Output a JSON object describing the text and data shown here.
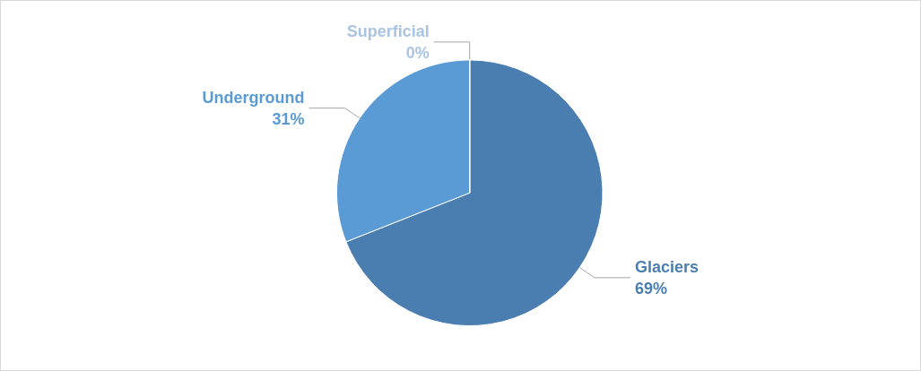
{
  "chart_data": {
    "type": "pie",
    "categories": [
      "Glaciers",
      "Underground",
      "Superficial"
    ],
    "values": [
      69,
      31,
      0
    ],
    "colors": [
      "#4a7eb0",
      "#5b9bd5",
      "#a9c4e4"
    ],
    "value_labels": [
      "69%",
      "31%",
      "0%"
    ],
    "legend": false
  }
}
